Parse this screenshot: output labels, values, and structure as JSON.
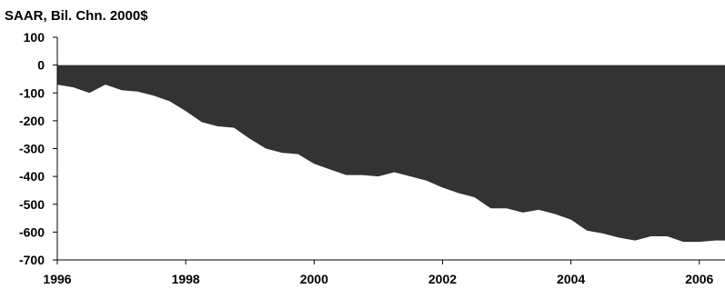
{
  "chart_data": {
    "type": "area",
    "title": "SAAR, Bil. Chn. 2000$",
    "xlabel": "",
    "ylabel": "",
    "xlim": [
      1996,
      2006.4
    ],
    "ylim": [
      -700,
      100
    ],
    "yticks": [
      100,
      0,
      -100,
      -200,
      -300,
      -400,
      -500,
      -600,
      -700
    ],
    "xticks": [
      1996,
      1998,
      2000,
      2002,
      2004,
      2006
    ],
    "fill_color": "#333333",
    "grid": false,
    "series": [
      {
        "x": [
          1996.0,
          1996.25,
          1996.5,
          1996.75,
          1997.0,
          1997.25,
          1997.5,
          1997.75,
          1998.0,
          1998.25,
          1998.5,
          1998.75,
          1999.0,
          1999.25,
          1999.5,
          1999.75,
          2000.0,
          2000.25,
          2000.5,
          2000.75,
          2001.0,
          2001.25,
          2001.5,
          2001.75,
          2002.0,
          2002.25,
          2002.5,
          2002.75,
          2003.0,
          2003.25,
          2003.5,
          2003.75,
          2004.0,
          2004.25,
          2004.5,
          2004.75,
          2005.0,
          2005.25,
          2005.5,
          2005.75,
          2006.0,
          2006.25,
          2006.4
        ],
        "values": [
          -70,
          -80,
          -100,
          -70,
          -90,
          -95,
          -110,
          -130,
          -165,
          -205,
          -220,
          -225,
          -265,
          -300,
          -315,
          -320,
          -355,
          -375,
          -395,
          -395,
          -400,
          -385,
          -400,
          -415,
          -440,
          -460,
          -475,
          -515,
          -515,
          -530,
          -520,
          -535,
          -555,
          -595,
          -605,
          -620,
          -630,
          -615,
          -615,
          -635,
          -635,
          -630,
          -630
        ]
      }
    ]
  }
}
